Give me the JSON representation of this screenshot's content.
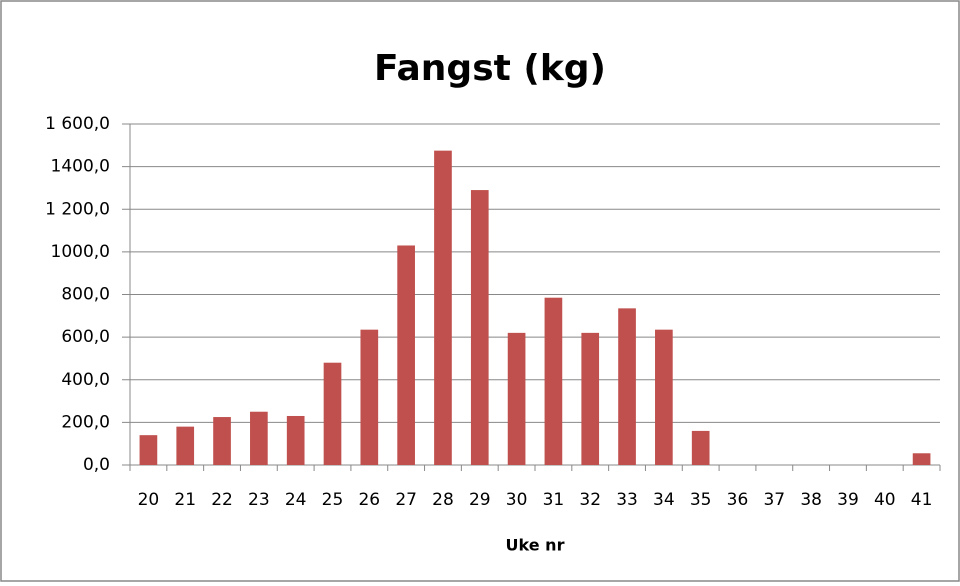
{
  "chart_data": {
    "type": "bar",
    "title": "Fangst (kg)",
    "x_label": "Uke nr",
    "categories": [
      "20",
      "21",
      "22",
      "23",
      "24",
      "25",
      "26",
      "27",
      "28",
      "29",
      "30",
      "31",
      "32",
      "33",
      "34",
      "35",
      "36",
      "37",
      "38",
      "39",
      "40",
      "41"
    ],
    "values": [
      140,
      180,
      225,
      250,
      230,
      480,
      635,
      1030,
      1475,
      1290,
      620,
      785,
      620,
      735,
      635,
      160,
      0,
      0,
      0,
      0,
      0,
      55
    ],
    "color": "#c0504d",
    "ylim": [
      0,
      1600
    ],
    "yticks": [
      {
        "value": 0,
        "label": "0,0"
      },
      {
        "value": 200,
        "label": "200,0"
      },
      {
        "value": 400,
        "label": "400,0"
      },
      {
        "value": 600,
        "label": "600,0"
      },
      {
        "value": 800,
        "label": "800,0"
      },
      {
        "value": 1000,
        "label": "1000,0"
      },
      {
        "value": 1200,
        "label": "1 200,0"
      },
      {
        "value": 1400,
        "label": "1400,0"
      },
      {
        "value": 1600,
        "label": "1 600,0"
      }
    ],
    "grid": true
  }
}
